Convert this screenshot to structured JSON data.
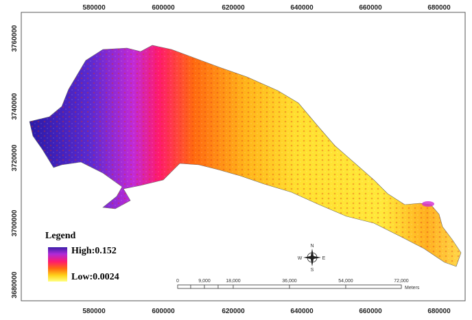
{
  "x_ticks": [
    "580000",
    "600000",
    "620000",
    "640000",
    "660000",
    "680000"
  ],
  "y_ticks": [
    "3760000",
    "3740000",
    "3720000",
    "3700000",
    "3680000"
  ],
  "legend": {
    "title": "Legend",
    "high": "High:0.152",
    "low": "Low:0.0024",
    "colors": [
      "#3a1ea8",
      "#b02ad8",
      "#ff1a6e",
      "#ff6a10",
      "#ffd21a",
      "#ffff80"
    ]
  },
  "scale_bar": {
    "labels": [
      "0",
      "9,000",
      "18,000",
      "36,000",
      "54,000",
      "72,000"
    ],
    "unit": "Meters"
  },
  "north_arrow": {
    "icon": "compass-rose-icon",
    "n": "N",
    "s": "S",
    "e": "E",
    "w": "W"
  }
}
